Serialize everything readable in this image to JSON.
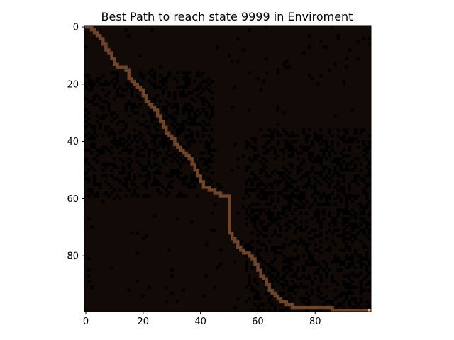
{
  "chart_data": {
    "type": "heatmap",
    "title": "Best Path to reach state 9999 in Enviroment",
    "xlabel": "",
    "ylabel": "",
    "grid_size": [
      100,
      100
    ],
    "xlim": [
      -0.5,
      99.5
    ],
    "ylim": [
      99.5,
      -0.5
    ],
    "x_ticks": [
      0,
      20,
      40,
      60,
      80
    ],
    "y_ticks": [
      0,
      20,
      40,
      60,
      80
    ],
    "x_tick_labels": [
      "0",
      "20",
      "40",
      "60",
      "80"
    ],
    "y_tick_labels": [
      "0",
      "20",
      "40",
      "60",
      "80"
    ],
    "grid": false,
    "colormap": "copper",
    "colors": {
      "free_cell": "#110a06",
      "obstacle_cell": "#000000",
      "path_cell": "#6e4529",
      "goal_cell": "#ffc480"
    },
    "start_state": 0,
    "goal_state": 9999,
    "path": [
      [
        0,
        0
      ],
      [
        1,
        0
      ],
      [
        2,
        1
      ],
      [
        3,
        2
      ],
      [
        4,
        3
      ],
      [
        5,
        4
      ],
      [
        6,
        5
      ],
      [
        6,
        6
      ],
      [
        7,
        7
      ],
      [
        7,
        8
      ],
      [
        8,
        9
      ],
      [
        9,
        10
      ],
      [
        9,
        11
      ],
      [
        10,
        12
      ],
      [
        10,
        13
      ],
      [
        11,
        14
      ],
      [
        12,
        14
      ],
      [
        13,
        14
      ],
      [
        14,
        15
      ],
      [
        15,
        16
      ],
      [
        15,
        17
      ],
      [
        15,
        18
      ],
      [
        16,
        19
      ],
      [
        17,
        20
      ],
      [
        18,
        21
      ],
      [
        19,
        22
      ],
      [
        20,
        23
      ],
      [
        20,
        24
      ],
      [
        21,
        25
      ],
      [
        21,
        26
      ],
      [
        22,
        27
      ],
      [
        23,
        28
      ],
      [
        24,
        29
      ],
      [
        25,
        30
      ],
      [
        25,
        31
      ],
      [
        26,
        32
      ],
      [
        26,
        33
      ],
      [
        27,
        34
      ],
      [
        27,
        35
      ],
      [
        28,
        36
      ],
      [
        28,
        37
      ],
      [
        29,
        38
      ],
      [
        30,
        39
      ],
      [
        31,
        40
      ],
      [
        31,
        41
      ],
      [
        32,
        42
      ],
      [
        33,
        43
      ],
      [
        34,
        44
      ],
      [
        35,
        45
      ],
      [
        36,
        46
      ],
      [
        37,
        47
      ],
      [
        37,
        48
      ],
      [
        38,
        49
      ],
      [
        38,
        50
      ],
      [
        39,
        51
      ],
      [
        39,
        52
      ],
      [
        40,
        53
      ],
      [
        40,
        54
      ],
      [
        41,
        55
      ],
      [
        41,
        56
      ],
      [
        43,
        57
      ],
      [
        45,
        58
      ],
      [
        47,
        59
      ],
      [
        49,
        59
      ],
      [
        50,
        60
      ],
      [
        50,
        61
      ],
      [
        50,
        62
      ],
      [
        50,
        63
      ],
      [
        50,
        64
      ],
      [
        50,
        65
      ],
      [
        50,
        66
      ],
      [
        50,
        67
      ],
      [
        50,
        68
      ],
      [
        50,
        69
      ],
      [
        50,
        70
      ],
      [
        50,
        71
      ],
      [
        50,
        72
      ],
      [
        51,
        73
      ],
      [
        51,
        74
      ],
      [
        52,
        75
      ],
      [
        53,
        76
      ],
      [
        53,
        77
      ],
      [
        54,
        78
      ],
      [
        55,
        79
      ],
      [
        57,
        80
      ],
      [
        58,
        81
      ],
      [
        59,
        82
      ],
      [
        59,
        83
      ],
      [
        60,
        84
      ],
      [
        60,
        85
      ],
      [
        61,
        86
      ],
      [
        61,
        87
      ],
      [
        62,
        88
      ],
      [
        63,
        89
      ],
      [
        63,
        90
      ],
      [
        64,
        91
      ],
      [
        64,
        92
      ],
      [
        65,
        93
      ],
      [
        66,
        94
      ],
      [
        67,
        95
      ],
      [
        68,
        96
      ],
      [
        70,
        97
      ],
      [
        72,
        98
      ],
      [
        75,
        98
      ],
      [
        80,
        98
      ],
      [
        85,
        98
      ],
      [
        86,
        99
      ],
      [
        90,
        99
      ],
      [
        95,
        99
      ],
      [
        98,
        99
      ],
      [
        99,
        99
      ]
    ]
  }
}
